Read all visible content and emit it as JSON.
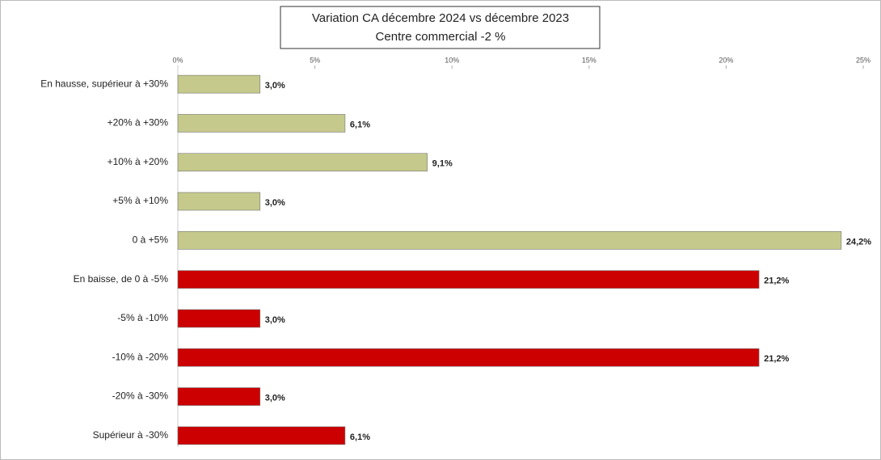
{
  "chart_data": {
    "type": "hbar",
    "title": "Variation CA décembre 2024 vs décembre 2023",
    "subtitle": "Centre commercial -2 %",
    "categories": [
      "En hausse, supérieur à +30%",
      "+20% à +30%",
      "+10% à +20%",
      "+5% à +10%",
      "0 à +5%",
      "En baisse, de 0 à -5%",
      "-5% à -10%",
      "-10% à -20%",
      "-20% à -30%",
      "Supérieur à -30%"
    ],
    "values": [
      3.0,
      6.1,
      9.1,
      3.0,
      24.2,
      21.2,
      3.0,
      21.2,
      3.0,
      6.1
    ],
    "value_labels": [
      "3,0%",
      "6,1%",
      "9,1%",
      "3,0%",
      "24,2%",
      "21,2%",
      "3,0%",
      "21,2%",
      "3,0%",
      "6,1%"
    ],
    "colors": [
      "#c5c98b",
      "#c5c98b",
      "#c5c98b",
      "#c5c98b",
      "#c5c98b",
      "#cc0000",
      "#cc0000",
      "#cc0000",
      "#cc0000",
      "#cc0000"
    ],
    "xlim": [
      0,
      25
    ],
    "xticks": [
      {
        "value": 0,
        "label": "0%"
      },
      {
        "value": 5,
        "label": "5%"
      },
      {
        "value": 10,
        "label": "10%"
      },
      {
        "value": 15,
        "label": "15%"
      },
      {
        "value": 20,
        "label": "20%"
      },
      {
        "value": 25,
        "label": "25%"
      }
    ]
  }
}
